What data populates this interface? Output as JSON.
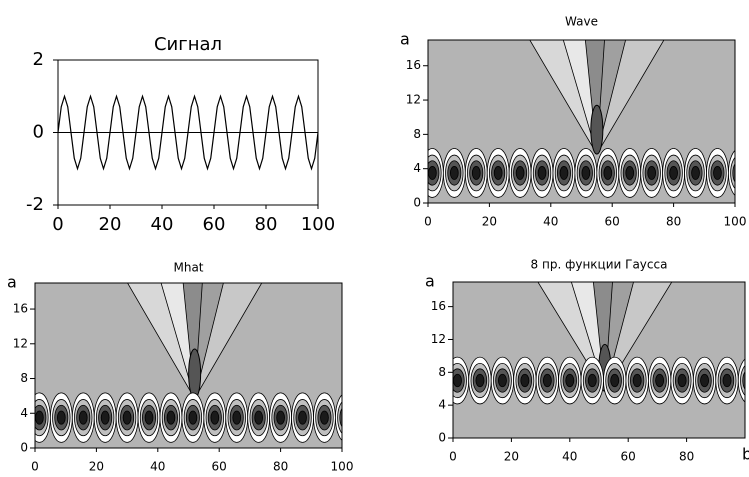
{
  "chart_data": [
    {
      "type": "line",
      "title": "Сигнал",
      "color": "#000000",
      "x": [
        0,
        1.25,
        2.5,
        3.75,
        5,
        6.25,
        7.5,
        8.75,
        10,
        11.25,
        12.5,
        13.75,
        15,
        16.25,
        17.5,
        18.75,
        20,
        21.25,
        22.5,
        23.75,
        25,
        26.25,
        27.5,
        28.75,
        30,
        31.25,
        32.5,
        33.75,
        35,
        36.25,
        37.5,
        38.75,
        40,
        41.25,
        42.5,
        43.75,
        45,
        46.25,
        47.5,
        48.75,
        50,
        51.25,
        52.5,
        53.75,
        55,
        56.25,
        57.5,
        58.75,
        60,
        61.25,
        62.5,
        63.75,
        65,
        66.25,
        67.5,
        68.75,
        70,
        71.25,
        72.5,
        73.75,
        75,
        76.25,
        77.5,
        78.75,
        80,
        81.25,
        82.5,
        83.75,
        85,
        86.25,
        87.5,
        88.75,
        90,
        91.25,
        92.5,
        93.75,
        95,
        96.25,
        97.5,
        98.75,
        100
      ],
      "values": [
        0,
        0.71,
        1,
        0.71,
        0,
        -0.71,
        -1,
        -0.71,
        0,
        0.71,
        1,
        0.71,
        0,
        -0.71,
        -1,
        -0.71,
        0,
        0.71,
        1,
        0.71,
        0,
        -0.71,
        -1,
        -0.71,
        0,
        0.71,
        1,
        0.71,
        0,
        -0.71,
        -1,
        -0.71,
        0,
        0.71,
        1,
        0.71,
        0,
        -0.71,
        -1,
        -0.71,
        0,
        0.71,
        1,
        0.71,
        0,
        -0.71,
        -1,
        -0.71,
        0,
        0.71,
        1,
        0.71,
        0,
        -0.71,
        -1,
        -0.71,
        0,
        0.71,
        1,
        0.71,
        0,
        -0.71,
        -1,
        -0.71,
        0,
        0.71,
        1,
        0.71,
        0,
        -0.71,
        -1,
        -0.71,
        0,
        0.71,
        1,
        0.71,
        0,
        -0.71,
        -1,
        -0.71,
        0
      ],
      "xlim": [
        0,
        100
      ],
      "xticks": [
        0,
        20,
        40,
        60,
        80,
        100
      ],
      "ylim": [
        -2,
        2
      ],
      "yticks": [
        -2,
        0,
        2
      ]
    },
    {
      "type": "contour",
      "title": "Wave",
      "ylabel": "a",
      "xlim": [
        0,
        100
      ],
      "xticks": [
        0,
        20,
        40,
        60,
        80,
        100
      ],
      "ylim": [
        0,
        19
      ],
      "yticks": [
        0,
        4,
        8,
        12,
        16
      ]
    },
    {
      "type": "contour",
      "title": "Mhat",
      "ylabel": "a",
      "xlim": [
        0,
        100
      ],
      "xticks": [
        0,
        20,
        40,
        60,
        80,
        100
      ],
      "ylim": [
        0,
        19
      ],
      "yticks": [
        0,
        4,
        8,
        12,
        16
      ]
    },
    {
      "type": "contour",
      "title": "8 пр. функции Гаусса",
      "ylabel": "a",
      "xlabel": "b",
      "xlim": [
        0,
        100
      ],
      "xticks": [
        0,
        20,
        40,
        60,
        80
      ],
      "ylim": [
        0,
        19
      ],
      "yticks": [
        0,
        4,
        8,
        12,
        16
      ]
    }
  ]
}
